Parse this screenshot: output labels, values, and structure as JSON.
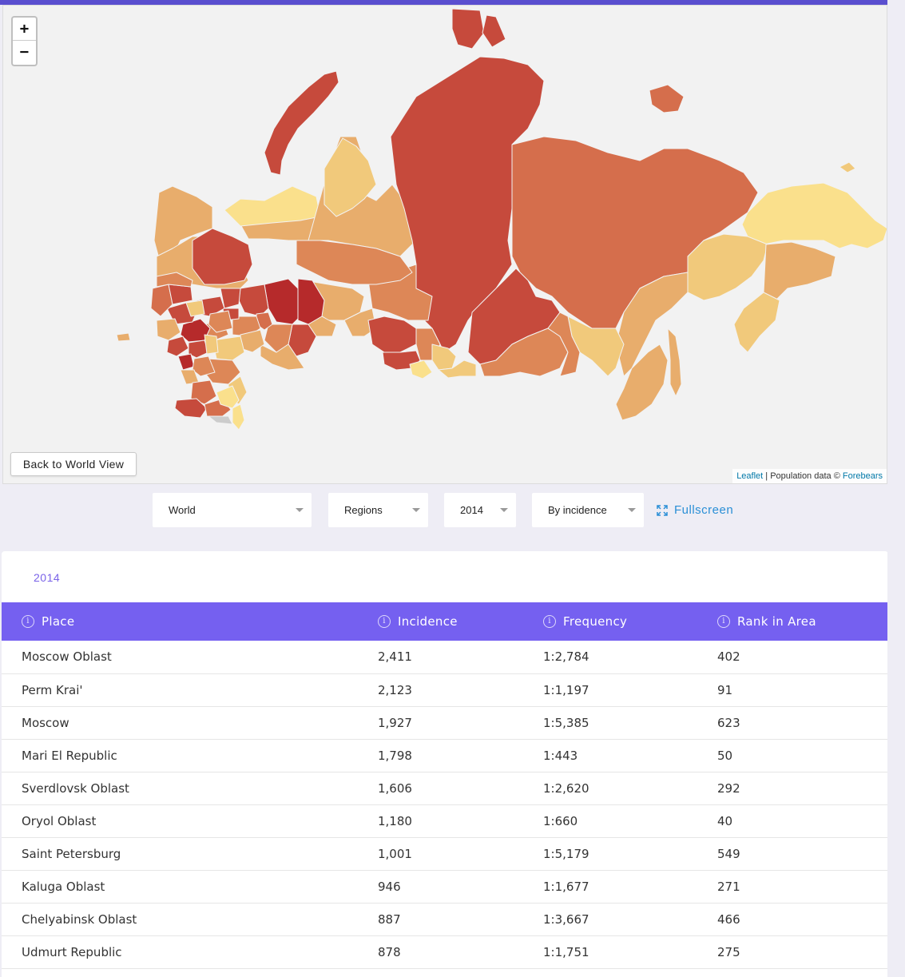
{
  "map": {
    "zoom_in_label": "+",
    "zoom_out_label": "−",
    "back_button_label": "Back to World View",
    "attribution": {
      "leaflet_link": "Leaflet",
      "separator": " | Population data © ",
      "forebears_link": "Forebears"
    },
    "colors": {
      "background": "#f2f2f2",
      "lightest": "#fae08c",
      "light": "#f1c97b",
      "mid_light": "#e8ad6c",
      "mid": "#dd8757",
      "mid_dark": "#d56e4c",
      "dark": "#c64a3c",
      "darkest": "#b62a2b"
    }
  },
  "controls": {
    "scope_select": "World",
    "level_select": "Regions",
    "year_select": "2014",
    "mode_select": "By incidence",
    "fullscreen_label": "Fullscreen"
  },
  "table": {
    "year_tab": "2014",
    "headers": [
      "Place",
      "Incidence",
      "Frequency",
      "Rank in Area"
    ],
    "rows": [
      [
        "Moscow Oblast",
        "2,411",
        "1:2,784",
        "402"
      ],
      [
        "Perm Krai'",
        "2,123",
        "1:1,197",
        "91"
      ],
      [
        "Moscow",
        "1,927",
        "1:5,385",
        "623"
      ],
      [
        "Mari El Republic",
        "1,798",
        "1:443",
        "50"
      ],
      [
        "Sverdlovsk Oblast",
        "1,606",
        "1:2,620",
        "292"
      ],
      [
        "Oryol Oblast",
        "1,180",
        "1:660",
        "40"
      ],
      [
        "Saint Petersburg",
        "1,001",
        "1:5,179",
        "549"
      ],
      [
        "Kaluga Oblast",
        "946",
        "1:1,677",
        "271"
      ],
      [
        "Chelyabinsk Oblast",
        "887",
        "1:3,667",
        "466"
      ],
      [
        "Udmurt Republic",
        "878",
        "1:1,751",
        "275"
      ]
    ],
    "accent_color": "#7560f0"
  }
}
